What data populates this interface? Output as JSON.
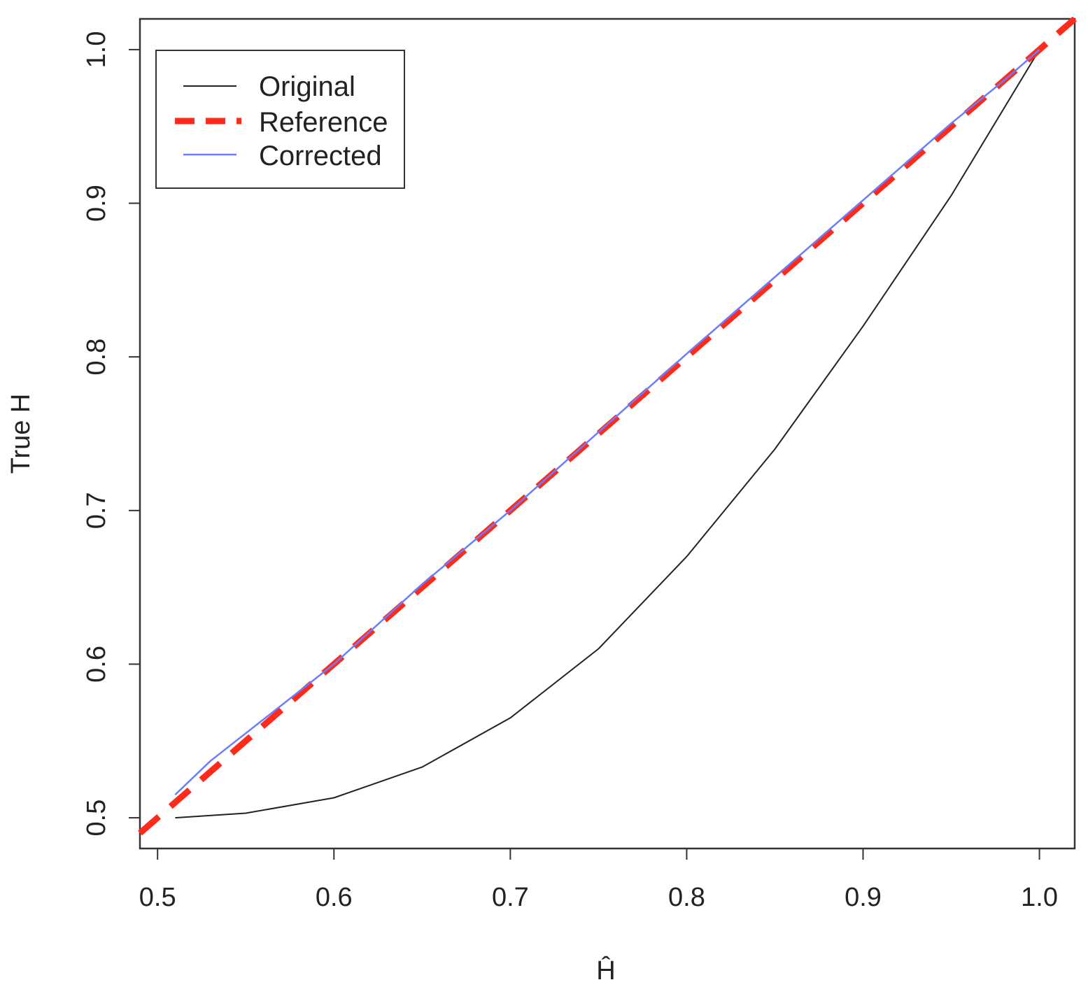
{
  "chart_data": {
    "type": "line",
    "xlabel": "Ĥ",
    "ylabel": "True H",
    "xlim": [
      0.49,
      1.02
    ],
    "ylim": [
      0.48,
      1.02
    ],
    "xticks": [
      {
        "value": 0.5,
        "label": "0.5"
      },
      {
        "value": 0.6,
        "label": "0.6"
      },
      {
        "value": 0.7,
        "label": "0.7"
      },
      {
        "value": 0.8,
        "label": "0.8"
      },
      {
        "value": 0.9,
        "label": "0.9"
      },
      {
        "value": 1.0,
        "label": "1.0"
      }
    ],
    "yticks": [
      {
        "value": 0.5,
        "label": "0.5"
      },
      {
        "value": 0.6,
        "label": "0.6"
      },
      {
        "value": 0.7,
        "label": "0.7"
      },
      {
        "value": 0.8,
        "label": "0.8"
      },
      {
        "value": 0.9,
        "label": "0.9"
      },
      {
        "value": 1.0,
        "label": "1.0"
      }
    ],
    "grid": false,
    "legend_position": "top-left",
    "series": [
      {
        "name": "Original",
        "color": "#222222",
        "style": "solid",
        "x": [
          0.51,
          0.55,
          0.6,
          0.65,
          0.7,
          0.75,
          0.8,
          0.85,
          0.9,
          0.95,
          1.0
        ],
        "y": [
          0.5,
          0.503,
          0.513,
          0.533,
          0.565,
          0.61,
          0.67,
          0.74,
          0.82,
          0.905,
          1.0
        ]
      },
      {
        "name": "Reference",
        "color": "#ff2a1a",
        "style": "dashed",
        "x": [
          0.49,
          1.02
        ],
        "y": [
          0.49,
          1.02
        ]
      },
      {
        "name": "Corrected",
        "color": "#6a7cff",
        "style": "solid",
        "x": [
          0.51,
          0.53,
          0.55,
          0.6,
          0.65,
          0.7,
          0.75,
          0.8,
          0.85,
          0.9,
          0.95,
          0.98,
          1.0
        ],
        "y": [
          0.515,
          0.537,
          0.555,
          0.6,
          0.652,
          0.7,
          0.751,
          0.802,
          0.852,
          0.902,
          0.952,
          0.98,
          1.0
        ]
      }
    ]
  }
}
